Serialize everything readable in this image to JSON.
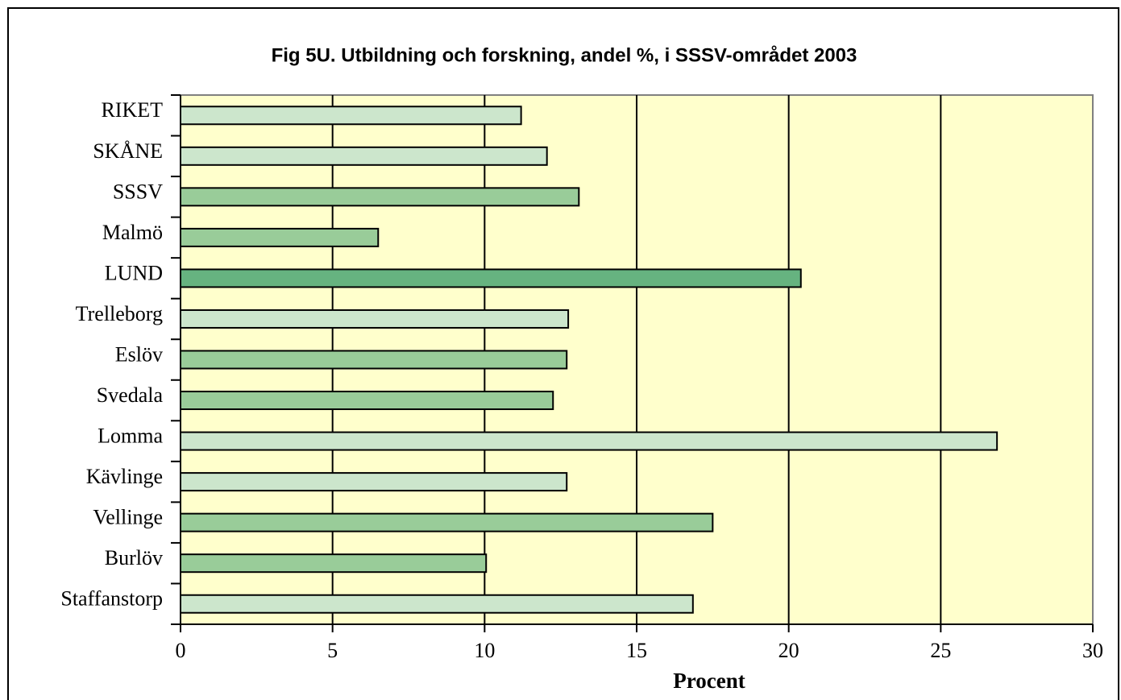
{
  "chart_data": {
    "type": "barh",
    "title": "Fig 5U. Utbildning och forskning, andel %,  i SSSV-området 2003",
    "xlabel": "Procent",
    "categories": [
      "RIKET",
      "SKÅNE",
      "SSSV",
      "Malmö",
      "LUND",
      "Trelleborg",
      "Eslöv",
      "Svedala",
      "Lomma",
      "Kävlinge",
      "Vellinge",
      "Burlöv",
      "Staffanstorp"
    ],
    "values": [
      11.2,
      12.05,
      13.1,
      6.5,
      20.4,
      12.75,
      12.7,
      12.25,
      26.85,
      12.7,
      17.5,
      10.05,
      16.85
    ],
    "colors": [
      "#cce6cc",
      "#cce6cc",
      "#99cc99",
      "#99cc99",
      "#66b380",
      "#cce6cc",
      "#99cc99",
      "#99cc99",
      "#cce6cc",
      "#cce6cc",
      "#99cc99",
      "#99cc99",
      "#cce6cc"
    ],
    "xlim": [
      0,
      30
    ],
    "xticks": [
      0,
      5,
      10,
      15,
      20,
      25,
      30
    ],
    "grid": true,
    "background": "#ffffcc"
  }
}
